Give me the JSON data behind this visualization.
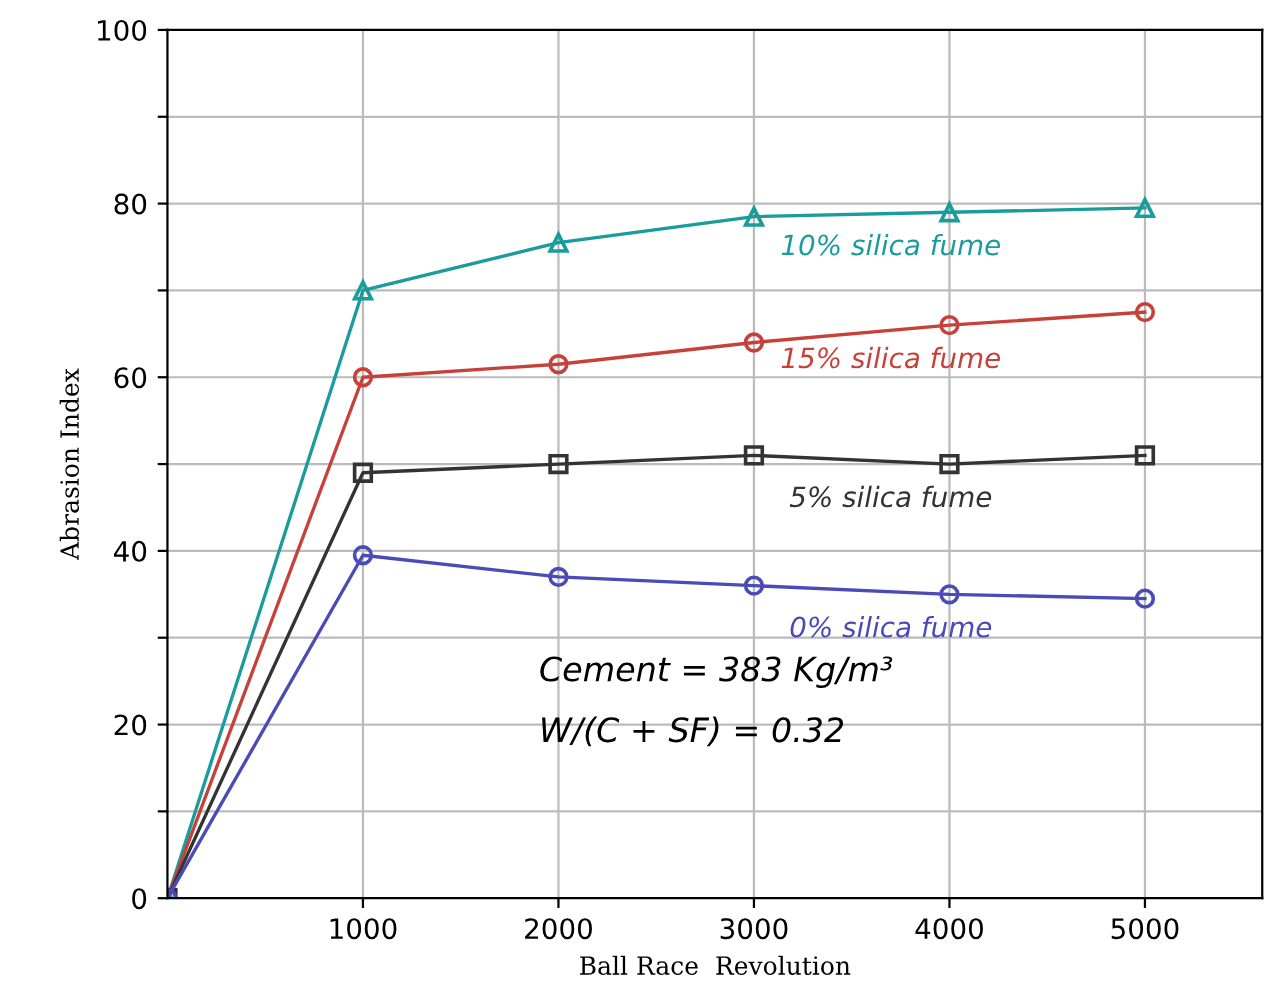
{
  "chart_data": {
    "type": "line",
    "xlabel": "Ball Race  Revolution",
    "ylabel": "Abrasion Index",
    "x": [
      0,
      1000,
      2000,
      3000,
      4000,
      5000
    ],
    "series": [
      {
        "name": "10% silica fume",
        "color": "#1a9c9c",
        "marker": "triangle",
        "values": [
          0,
          70,
          75.5,
          78.5,
          79,
          79.5
        ]
      },
      {
        "name": "15% silica fume",
        "color": "#c8403a",
        "marker": "circle",
        "values": [
          0,
          60,
          61.5,
          64,
          66,
          67.5
        ]
      },
      {
        "name": "5% silica fume",
        "color": "#333333",
        "marker": "square",
        "values": [
          0,
          49,
          50,
          51,
          50,
          51
        ]
      },
      {
        "name": "0% silica fume",
        "color": "#4a4ab8",
        "marker": "circle",
        "values": [
          0,
          39.5,
          37,
          36,
          35,
          34.5
        ]
      }
    ],
    "xlim": [
      0,
      5600
    ],
    "ylim": [
      0,
      100
    ],
    "xticks": [
      1000,
      2000,
      3000,
      4000,
      5000
    ],
    "yticks": [
      0,
      {
        "value": 10,
        "label": null
      },
      20,
      {
        "value": 30,
        "label": null
      },
      40,
      {
        "value": 50,
        "label": null
      },
      60,
      {
        "value": 70,
        "label": null
      },
      80,
      {
        "value": 90,
        "label": null
      },
      100
    ],
    "grid": true,
    "annotations": [
      "Cement = 383 Kg/m³",
      "W/(C + SF) = 0.32"
    ]
  }
}
